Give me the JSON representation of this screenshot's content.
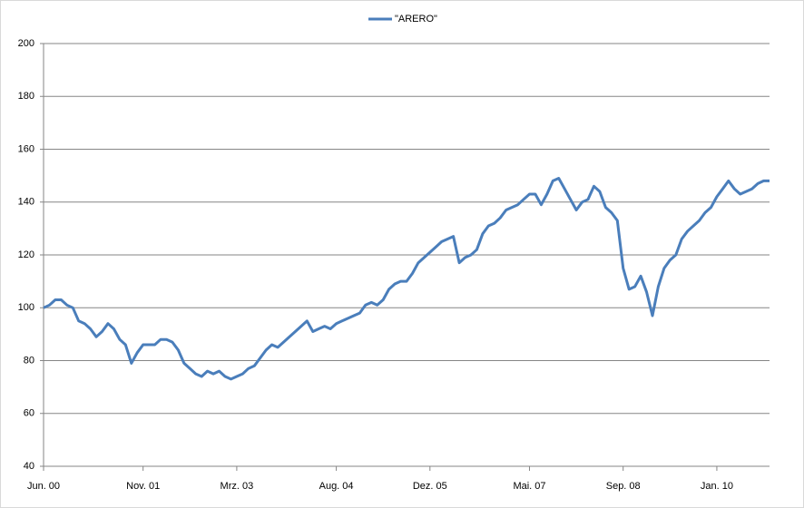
{
  "chart_data": {
    "type": "line",
    "legend": "top",
    "grid": true,
    "ylim": [
      40,
      200
    ],
    "yticks": [
      40,
      60,
      80,
      100,
      120,
      140,
      160,
      180,
      200
    ],
    "categories": [
      "Jun. 00",
      null,
      null,
      null,
      null,
      null,
      null,
      null,
      null,
      null,
      null,
      null,
      null,
      null,
      null,
      null,
      null,
      "Nov. 01",
      null,
      null,
      null,
      null,
      null,
      null,
      null,
      null,
      null,
      null,
      null,
      null,
      null,
      null,
      null,
      "Mrz. 03",
      null,
      null,
      null,
      null,
      null,
      null,
      null,
      null,
      null,
      null,
      null,
      null,
      null,
      null,
      null,
      null,
      "Aug. 04",
      null,
      null,
      null,
      null,
      null,
      null,
      null,
      null,
      null,
      null,
      null,
      null,
      null,
      null,
      null,
      "Dez. 05",
      null,
      null,
      null,
      null,
      null,
      null,
      null,
      null,
      null,
      null,
      null,
      null,
      null,
      null,
      null,
      null,
      "Mai. 07",
      null,
      null,
      null,
      null,
      null,
      null,
      null,
      null,
      null,
      null,
      null,
      null,
      null,
      null,
      null,
      "Sep. 08",
      null,
      null,
      null,
      null,
      null,
      null,
      null,
      null,
      null,
      null,
      null,
      null,
      null,
      null,
      null,
      "Jan. 10",
      null,
      null,
      null,
      null,
      null,
      null,
      null,
      null,
      null
    ],
    "series": [
      {
        "name": "\"ARERO\"",
        "color": "#4a7ebb",
        "values": [
          100,
          101,
          103,
          103,
          101,
          100,
          95,
          94,
          92,
          89,
          91,
          94,
          92,
          88,
          86,
          79,
          83,
          86,
          86,
          86,
          88,
          88,
          87,
          84,
          79,
          77,
          75,
          74,
          76,
          75,
          76,
          74,
          73,
          74,
          75,
          77,
          78,
          81,
          84,
          86,
          85,
          87,
          89,
          91,
          93,
          95,
          91,
          92,
          93,
          92,
          94,
          95,
          96,
          97,
          98,
          101,
          102,
          101,
          103,
          107,
          109,
          110,
          110,
          113,
          117,
          119,
          121,
          123,
          125,
          126,
          127,
          117,
          119,
          120,
          122,
          128,
          131,
          132,
          134,
          137,
          138,
          139,
          141,
          143,
          143,
          139,
          143,
          148,
          149,
          145,
          141,
          137,
          140,
          141,
          146,
          144,
          138,
          136,
          133,
          115,
          107,
          108,
          112,
          106,
          97,
          108,
          115,
          118,
          120,
          126,
          129,
          131,
          133,
          136,
          138,
          142,
          145,
          148,
          145,
          143,
          144,
          145,
          147,
          148,
          148
        ]
      }
    ]
  }
}
